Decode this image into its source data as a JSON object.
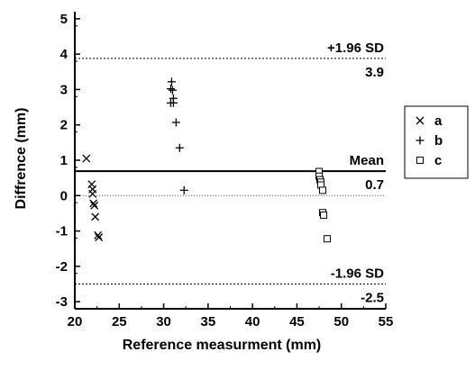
{
  "chart_data": {
    "type": "scatter",
    "title": "",
    "xlabel": "Reference measurment (mm)",
    "ylabel": "Diffrence (mm)",
    "xlim": [
      20,
      55
    ],
    "ylim": [
      -3.2,
      5.2
    ],
    "xticks": [
      20,
      25,
      30,
      35,
      40,
      45,
      50,
      55
    ],
    "yticks": [
      -3,
      -2,
      -1,
      0,
      1,
      2,
      3,
      4,
      5
    ],
    "grid": false,
    "legend_position": "right",
    "reference_lines": [
      {
        "name": "upper",
        "y": 3.88,
        "style": "dotted",
        "label_top": "+1.96 SD",
        "label_bottom": "3.9"
      },
      {
        "name": "mean",
        "y": 0.69,
        "style": "solid",
        "label_top": "Mean",
        "label_bottom": "0.7"
      },
      {
        "name": "zero",
        "y": 0.0,
        "style": "dotted-light",
        "label_top": "",
        "label_bottom": ""
      },
      {
        "name": "lower",
        "y": -2.5,
        "style": "dotted",
        "label_top": "-1.96 SD",
        "label_bottom": "-2.5"
      }
    ],
    "series": [
      {
        "name": "a",
        "marker": "x",
        "points": [
          [
            21.3,
            1.05
          ],
          [
            21.9,
            0.32
          ],
          [
            22.0,
            0.18
          ],
          [
            22.0,
            0.05
          ],
          [
            22.1,
            -0.22
          ],
          [
            22.2,
            -0.28
          ],
          [
            22.3,
            -0.6
          ],
          [
            22.6,
            -1.12
          ],
          [
            22.7,
            -1.18
          ]
        ]
      },
      {
        "name": "b",
        "marker": "plus",
        "points": [
          [
            30.9,
            3.22
          ],
          [
            30.8,
            3.02
          ],
          [
            31.0,
            2.98
          ],
          [
            31.1,
            2.75
          ],
          [
            30.8,
            2.62
          ],
          [
            31.1,
            2.62
          ],
          [
            31.4,
            2.07
          ],
          [
            31.8,
            1.35
          ],
          [
            32.3,
            0.15
          ]
        ]
      },
      {
        "name": "c",
        "marker": "square",
        "points": [
          [
            47.5,
            0.68
          ],
          [
            47.5,
            0.55
          ],
          [
            47.6,
            0.45
          ],
          [
            47.7,
            0.38
          ],
          [
            47.7,
            0.3
          ],
          [
            47.9,
            0.15
          ],
          [
            47.9,
            -0.48
          ],
          [
            48.0,
            -0.55
          ],
          [
            48.4,
            -1.22
          ]
        ]
      }
    ]
  }
}
